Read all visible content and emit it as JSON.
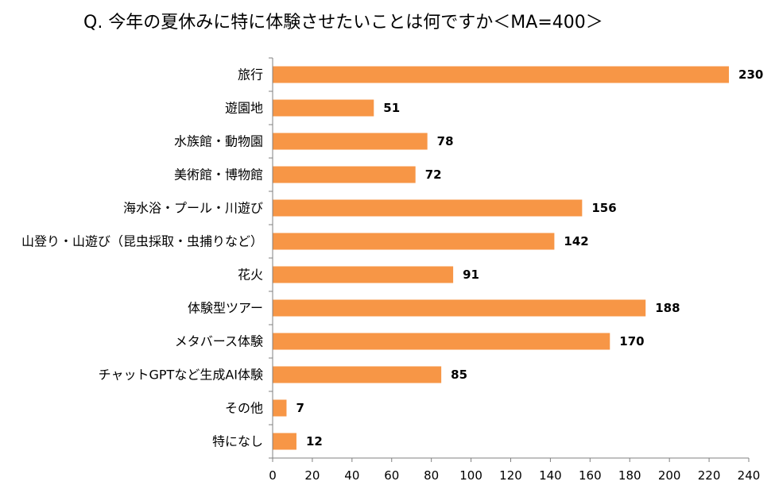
{
  "chart_data": {
    "type": "bar",
    "orientation": "horizontal",
    "title": "Q. 今年の夏休みに特に体験させたいことは何ですか＜MA=400＞",
    "categories": [
      "旅行",
      "遊園地",
      "水族館・動物園",
      "美術館・博物館",
      "海水浴・プール・川遊び",
      "山登り・山遊び（昆虫採取・虫捕りなど）",
      "花火",
      "体験型ツアー",
      "メタバース体験",
      "チャットGPTなど生成AI体験",
      "その他",
      "特になし"
    ],
    "values": [
      230,
      51,
      78,
      72,
      156,
      142,
      91,
      188,
      170,
      85,
      7,
      12
    ],
    "value_labels": [
      "230",
      "51",
      "78",
      "72",
      "156",
      "142",
      "91",
      "188",
      "170",
      "85",
      "7",
      "12"
    ],
    "xlim": [
      0,
      240
    ],
    "xticks": [
      0,
      20,
      40,
      60,
      80,
      100,
      120,
      140,
      160,
      180,
      200,
      220,
      240
    ],
    "xtick_labels": [
      "0",
      "20",
      "40",
      "60",
      "80",
      "100",
      "120",
      "140",
      "160",
      "180",
      "200",
      "220",
      "240"
    ],
    "xlabel": "",
    "ylabel": "",
    "grid": false,
    "legend": "none",
    "bar_color": "#f79646"
  }
}
